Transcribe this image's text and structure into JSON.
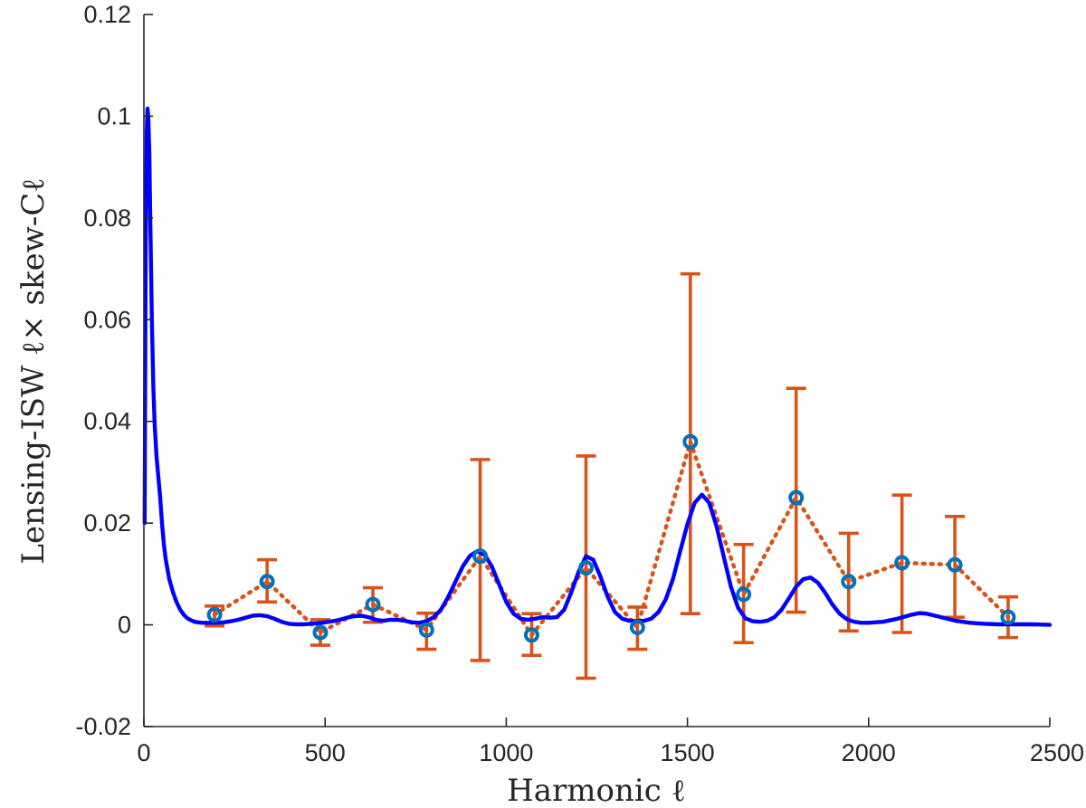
{
  "chart_data": {
    "type": "line",
    "title": "",
    "xlabel": "Harmonic ℓ",
    "ylabel": "Lensing-ISW ℓ× skew-Cℓ",
    "xlim": [
      0,
      2500
    ],
    "ylim": [
      -0.02,
      0.12
    ],
    "grid": false,
    "x_ticks": [
      0,
      500,
      1000,
      1500,
      2000,
      2500
    ],
    "x_tick_labels": [
      "0",
      "500",
      "1000",
      "1500",
      "2000",
      "2500"
    ],
    "y_ticks": [
      -0.02,
      0,
      0.02,
      0.04,
      0.06,
      0.08,
      0.1,
      0.12
    ],
    "y_tick_labels": [
      "-0.02",
      "0",
      "0.02",
      "0.04",
      "0.06",
      "0.08",
      "0.1",
      "0.12"
    ],
    "colors": {
      "theory": "#0000ff",
      "measured_line": "#d95319",
      "measured_marker": "#0072bd",
      "axis": "#262626"
    },
    "series": [
      {
        "kind": "theory_curve",
        "x": [
          2,
          5,
          8,
          10,
          12,
          15,
          18,
          22,
          26,
          30,
          35,
          40,
          45,
          50,
          55,
          60,
          70,
          80,
          90,
          100,
          110,
          120,
          130,
          140,
          150,
          160,
          170,
          180,
          190,
          200,
          220,
          240,
          260,
          280,
          300,
          320,
          340,
          360,
          380,
          400,
          420,
          440,
          460,
          480,
          500,
          520,
          540,
          560,
          580,
          600,
          620,
          640,
          660,
          680,
          700,
          720,
          740,
          760,
          780,
          800,
          820,
          840,
          860,
          880,
          900,
          920,
          940,
          960,
          980,
          1000,
          1020,
          1040,
          1060,
          1080,
          1100,
          1120,
          1140,
          1160,
          1180,
          1200,
          1220,
          1240,
          1260,
          1280,
          1300,
          1320,
          1340,
          1360,
          1380,
          1400,
          1420,
          1440,
          1460,
          1480,
          1500,
          1520,
          1540,
          1560,
          1580,
          1600,
          1620,
          1640,
          1660,
          1680,
          1700,
          1720,
          1740,
          1760,
          1780,
          1800,
          1820,
          1840,
          1860,
          1880,
          1900,
          1920,
          1940,
          1960,
          1980,
          2000,
          2040,
          2080,
          2120,
          2140,
          2160,
          2200,
          2240,
          2280,
          2320,
          2360,
          2400,
          2450,
          2500
        ],
        "y": [
          0.02,
          0.075,
          0.097,
          0.1015,
          0.1,
          0.093,
          0.078,
          0.06,
          0.047,
          0.039,
          0.033,
          0.029,
          0.025,
          0.02,
          0.016,
          0.013,
          0.009,
          0.0065,
          0.0045,
          0.003,
          0.002,
          0.0013,
          0.0009,
          0.0006,
          0.0005,
          0.0004,
          0.0004,
          0.0004,
          0.0004,
          0.0004,
          0.0005,
          0.0007,
          0.001,
          0.0014,
          0.0018,
          0.0019,
          0.0017,
          0.0012,
          0.0006,
          0.0002,
          0.0001,
          0.0001,
          0.0002,
          0.0003,
          0.0005,
          0.0007,
          0.001,
          0.0014,
          0.0017,
          0.0018,
          0.0015,
          0.001,
          0.0008,
          0.001,
          0.001,
          0.0008,
          0.0005,
          0.0004,
          0.0007,
          0.0015,
          0.003,
          0.0055,
          0.0085,
          0.0115,
          0.0136,
          0.0145,
          0.0138,
          0.0115,
          0.008,
          0.0045,
          0.0022,
          0.0012,
          0.001,
          0.0012,
          0.0015,
          0.0014,
          0.0015,
          0.003,
          0.0065,
          0.0105,
          0.0135,
          0.0128,
          0.0095,
          0.0055,
          0.0025,
          0.0012,
          0.0008,
          0.0007,
          0.0008,
          0.0012,
          0.0025,
          0.005,
          0.009,
          0.0145,
          0.0198,
          0.024,
          0.0256,
          0.024,
          0.0195,
          0.0135,
          0.0075,
          0.0033,
          0.0013,
          0.0007,
          0.0006,
          0.0008,
          0.0015,
          0.003,
          0.0052,
          0.0075,
          0.009,
          0.0093,
          0.0083,
          0.0063,
          0.004,
          0.0022,
          0.0011,
          0.0006,
          0.0004,
          0.0004,
          0.0006,
          0.0012,
          0.002,
          0.0023,
          0.0022,
          0.0015,
          0.0008,
          0.0004,
          0.0002,
          0.0001,
          0.0001,
          0.0001,
          0.0
        ]
      },
      {
        "kind": "binned_measurement",
        "x": [
          195,
          340,
          487,
          632,
          780,
          928,
          1070,
          1220,
          1362,
          1508,
          1655,
          1800,
          1945,
          2092,
          2238,
          2385
        ],
        "y": [
          0.002,
          0.0085,
          -0.0015,
          0.004,
          -0.001,
          0.0135,
          -0.002,
          0.0112,
          -0.0005,
          0.036,
          0.006,
          0.025,
          0.0085,
          0.0122,
          0.0118,
          0.0015
        ],
        "err_lower": [
          -0.0002,
          0.0045,
          -0.004,
          0.0005,
          -0.0048,
          -0.007,
          -0.006,
          -0.0105,
          -0.0048,
          0.0022,
          -0.0035,
          0.0025,
          -0.0012,
          -0.0015,
          0.0015,
          -0.0025
        ],
        "err_upper": [
          0.0037,
          0.0128,
          0.001,
          0.0073,
          0.0023,
          0.0325,
          0.0022,
          0.0332,
          0.0035,
          0.069,
          0.0158,
          0.0465,
          0.018,
          0.0255,
          0.0213,
          0.0055
        ]
      }
    ]
  }
}
